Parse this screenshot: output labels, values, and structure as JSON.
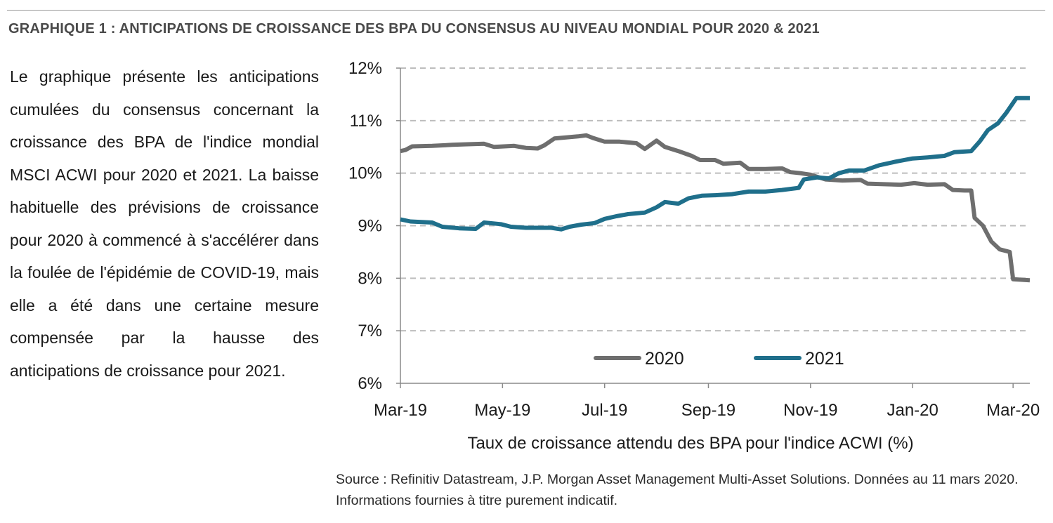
{
  "figure": {
    "title": "GRAPHIQUE 1 : ANTICIPATIONS DE CROISSANCE DES BPA  DU CONSENSUS AU NIVEAU MONDIAL POUR 2020 & 2021",
    "description": "Le graphique présente les anticipations cumulées du consensus concernant la croissance des BPA de l'indice mondial MSCI ACWI pour 2020 et 2021. La baisse habituelle des prévisions de croissance pour 2020 à commencé à s'accélérer dans la foulée de l'épidémie de COVID-19, mais elle a été dans une certaine mesure compensée par la hausse des anticipations de croissance pour 2021.",
    "source": "Source : Refinitiv Datastream, J.P. Morgan Asset Management Multi-Asset Solutions. Données au 11 mars 2020. Informations fournies à titre purement indicatif."
  },
  "chart_data": {
    "type": "line",
    "xlabel": "Taux de croissance attendu des BPA pour l'indice ACWI (%)",
    "ylabel": "",
    "ylim": [
      6,
      12
    ],
    "xlim": [
      "2019-03-01",
      "2020-03-11"
    ],
    "y_ticks": [
      "6%",
      "7%",
      "8%",
      "9%",
      "10%",
      "11%",
      "12%"
    ],
    "x_ticks": [
      {
        "date": "2019-03-01",
        "label": "Mar-19"
      },
      {
        "date": "2019-05-01",
        "label": "May-19"
      },
      {
        "date": "2019-07-01",
        "label": "Jul-19"
      },
      {
        "date": "2019-09-01",
        "label": "Sep-19"
      },
      {
        "date": "2019-11-01",
        "label": "Nov-19"
      },
      {
        "date": "2020-01-01",
        "label": "Jan-20"
      },
      {
        "date": "2020-03-01",
        "label": "Mar-20"
      }
    ],
    "grid": "horizontal dashed",
    "legend_position": "bottom-center",
    "series": [
      {
        "name": "2020",
        "color": "#6e6e6e",
        "points": [
          [
            "2019-03-01",
            10.42
          ],
          [
            "2019-03-04",
            10.44
          ],
          [
            "2019-03-08",
            10.51
          ],
          [
            "2019-03-20",
            10.52
          ],
          [
            "2019-04-01",
            10.54
          ],
          [
            "2019-04-10",
            10.55
          ],
          [
            "2019-04-20",
            10.56
          ],
          [
            "2019-04-26",
            10.5
          ],
          [
            "2019-05-08",
            10.52
          ],
          [
            "2019-05-15",
            10.48
          ],
          [
            "2019-05-22",
            10.47
          ],
          [
            "2019-05-26",
            10.53
          ],
          [
            "2019-06-01",
            10.66
          ],
          [
            "2019-06-08",
            10.68
          ],
          [
            "2019-06-15",
            10.7
          ],
          [
            "2019-06-20",
            10.72
          ],
          [
            "2019-06-24",
            10.67
          ],
          [
            "2019-07-01",
            10.6
          ],
          [
            "2019-07-10",
            10.6
          ],
          [
            "2019-07-20",
            10.57
          ],
          [
            "2019-07-25",
            10.46
          ],
          [
            "2019-08-01",
            10.62
          ],
          [
            "2019-08-06",
            10.5
          ],
          [
            "2019-08-14",
            10.42
          ],
          [
            "2019-08-22",
            10.33
          ],
          [
            "2019-08-27",
            10.25
          ],
          [
            "2019-09-05",
            10.25
          ],
          [
            "2019-09-10",
            10.18
          ],
          [
            "2019-09-20",
            10.2
          ],
          [
            "2019-09-25",
            10.08
          ],
          [
            "2019-10-05",
            10.08
          ],
          [
            "2019-10-15",
            10.09
          ],
          [
            "2019-10-20",
            10.02
          ],
          [
            "2019-10-26",
            10.0
          ],
          [
            "2019-11-01",
            9.97
          ],
          [
            "2019-11-10",
            9.88
          ],
          [
            "2019-11-20",
            9.86
          ],
          [
            "2019-12-01",
            9.87
          ],
          [
            "2019-12-05",
            9.8
          ],
          [
            "2019-12-15",
            9.79
          ],
          [
            "2019-12-25",
            9.78
          ],
          [
            "2020-01-02",
            9.81
          ],
          [
            "2020-01-10",
            9.78
          ],
          [
            "2020-01-20",
            9.79
          ],
          [
            "2020-01-25",
            9.68
          ],
          [
            "2020-02-01",
            9.67
          ],
          [
            "2020-02-05",
            9.67
          ],
          [
            "2020-02-07",
            9.15
          ],
          [
            "2020-02-12",
            9.0
          ],
          [
            "2020-02-17",
            8.7
          ],
          [
            "2020-02-22",
            8.55
          ],
          [
            "2020-02-28",
            8.5
          ],
          [
            "2020-03-01",
            7.98
          ],
          [
            "2020-03-11",
            7.96
          ]
        ]
      },
      {
        "name": "2021",
        "color": "#1f6f8b",
        "points": [
          [
            "2019-03-01",
            9.12
          ],
          [
            "2019-03-07",
            9.08
          ],
          [
            "2019-03-20",
            9.06
          ],
          [
            "2019-03-26",
            8.98
          ],
          [
            "2019-04-05",
            8.95
          ],
          [
            "2019-04-15",
            8.94
          ],
          [
            "2019-04-20",
            9.06
          ],
          [
            "2019-04-30",
            9.03
          ],
          [
            "2019-05-06",
            8.98
          ],
          [
            "2019-05-15",
            8.96
          ],
          [
            "2019-05-30",
            8.96
          ],
          [
            "2019-06-05",
            8.93
          ],
          [
            "2019-06-10",
            8.98
          ],
          [
            "2019-06-17",
            9.02
          ],
          [
            "2019-06-25",
            9.05
          ],
          [
            "2019-07-01",
            9.13
          ],
          [
            "2019-07-08",
            9.18
          ],
          [
            "2019-07-15",
            9.22
          ],
          [
            "2019-07-25",
            9.25
          ],
          [
            "2019-08-01",
            9.35
          ],
          [
            "2019-08-06",
            9.45
          ],
          [
            "2019-08-14",
            9.42
          ],
          [
            "2019-08-20",
            9.52
          ],
          [
            "2019-08-28",
            9.57
          ],
          [
            "2019-09-05",
            9.58
          ],
          [
            "2019-09-15",
            9.6
          ],
          [
            "2019-09-25",
            9.65
          ],
          [
            "2019-10-05",
            9.65
          ],
          [
            "2019-10-15",
            9.68
          ],
          [
            "2019-10-25",
            9.72
          ],
          [
            "2019-10-28",
            9.88
          ],
          [
            "2019-11-05",
            9.92
          ],
          [
            "2019-11-12",
            9.9
          ],
          [
            "2019-11-18",
            10.0
          ],
          [
            "2019-11-24",
            10.05
          ],
          [
            "2019-12-03",
            10.05
          ],
          [
            "2019-12-12",
            10.15
          ],
          [
            "2019-12-22",
            10.22
          ],
          [
            "2020-01-01",
            10.28
          ],
          [
            "2020-01-10",
            10.3
          ],
          [
            "2020-01-20",
            10.33
          ],
          [
            "2020-01-26",
            10.4
          ],
          [
            "2020-02-05",
            10.42
          ],
          [
            "2020-02-10",
            10.6
          ],
          [
            "2020-02-15",
            10.82
          ],
          [
            "2020-02-21",
            10.95
          ],
          [
            "2020-02-26",
            11.15
          ],
          [
            "2020-03-03",
            11.43
          ],
          [
            "2020-03-11",
            11.43
          ]
        ]
      }
    ]
  }
}
